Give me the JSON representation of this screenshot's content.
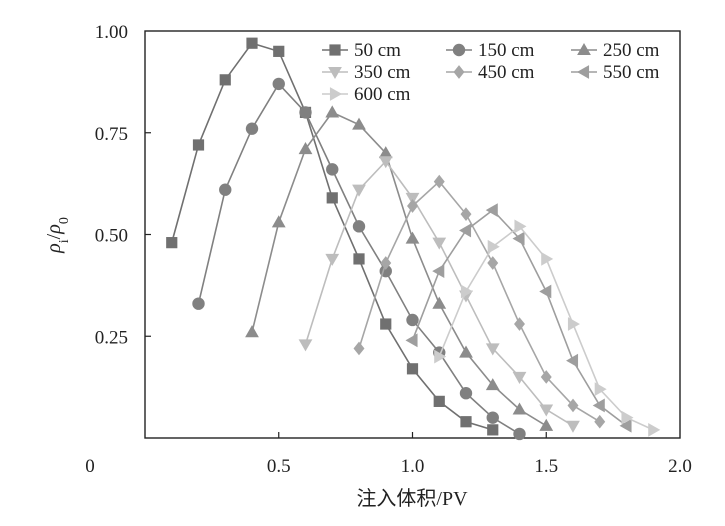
{
  "chart_data": {
    "type": "line",
    "title": "",
    "xlabel": "注入体积/PV",
    "ylabel_main": "ρ",
    "ylabel_sub1": "i",
    "ylabel_slash": "/",
    "ylabel_sub2": "0",
    "xlim": [
      0,
      2.0
    ],
    "ylim": [
      0,
      1.0
    ],
    "x_ticks": [
      {
        "value": 0,
        "label": "0"
      },
      {
        "value": 0.5,
        "label": "0.5"
      },
      {
        "value": 1.0,
        "label": "1.0"
      },
      {
        "value": 1.5,
        "label": "1.5"
      },
      {
        "value": 2.0,
        "label": "2.0"
      }
    ],
    "y_ticks": [
      {
        "value": 0.25,
        "label": "0.25"
      },
      {
        "value": 0.5,
        "label": "0.50"
      },
      {
        "value": 0.75,
        "label": "0.75"
      },
      {
        "value": 1.0,
        "label": "1.00"
      }
    ],
    "legend_position": "top-right",
    "series": [
      {
        "name": "50 cm",
        "marker": "square",
        "color": "#707070",
        "x": [
          0.1,
          0.2,
          0.3,
          0.4,
          0.5,
          0.6,
          0.7,
          0.8,
          0.9,
          1.0,
          1.1,
          1.2,
          1.3
        ],
        "y": [
          0.48,
          0.72,
          0.88,
          0.97,
          0.95,
          0.8,
          0.59,
          0.44,
          0.28,
          0.17,
          0.09,
          0.04,
          0.02
        ]
      },
      {
        "name": "150 cm",
        "marker": "circle",
        "color": "#808080",
        "x": [
          0.2,
          0.3,
          0.4,
          0.5,
          0.6,
          0.7,
          0.8,
          0.9,
          1.0,
          1.1,
          1.2,
          1.3,
          1.4
        ],
        "y": [
          0.33,
          0.61,
          0.76,
          0.87,
          0.8,
          0.66,
          0.52,
          0.41,
          0.29,
          0.21,
          0.11,
          0.05,
          0.01
        ]
      },
      {
        "name": "250 cm",
        "marker": "triangle-up",
        "color": "#8c8c8c",
        "x": [
          0.4,
          0.5,
          0.6,
          0.7,
          0.8,
          0.9,
          1.0,
          1.1,
          1.2,
          1.3,
          1.4,
          1.5
        ],
        "y": [
          0.26,
          0.53,
          0.71,
          0.8,
          0.77,
          0.7,
          0.49,
          0.33,
          0.21,
          0.13,
          0.07,
          0.03
        ]
      },
      {
        "name": "350 cm",
        "marker": "triangle-down",
        "color": "#bdbdbd",
        "x": [
          0.6,
          0.7,
          0.8,
          0.9,
          1.0,
          1.1,
          1.2,
          1.3,
          1.4,
          1.5,
          1.6
        ],
        "y": [
          0.23,
          0.44,
          0.61,
          0.68,
          0.59,
          0.48,
          0.35,
          0.22,
          0.15,
          0.07,
          0.03
        ]
      },
      {
        "name": "450 cm",
        "marker": "diamond",
        "color": "#a6a6a6",
        "x": [
          0.8,
          0.9,
          1.0,
          1.1,
          1.2,
          1.3,
          1.4,
          1.5,
          1.6,
          1.7
        ],
        "y": [
          0.22,
          0.43,
          0.57,
          0.63,
          0.55,
          0.43,
          0.28,
          0.15,
          0.08,
          0.04
        ]
      },
      {
        "name": "550 cm",
        "marker": "triangle-left",
        "color": "#9e9e9e",
        "x": [
          1.0,
          1.1,
          1.2,
          1.3,
          1.4,
          1.5,
          1.6,
          1.7,
          1.8
        ],
        "y": [
          0.24,
          0.41,
          0.51,
          0.56,
          0.49,
          0.36,
          0.19,
          0.08,
          0.03
        ]
      },
      {
        "name": "600 cm",
        "marker": "triangle-right",
        "color": "#cccccc",
        "x": [
          1.1,
          1.2,
          1.3,
          1.4,
          1.5,
          1.6,
          1.7,
          1.8,
          1.9
        ],
        "y": [
          0.2,
          0.36,
          0.47,
          0.52,
          0.44,
          0.28,
          0.12,
          0.05,
          0.02
        ]
      }
    ]
  }
}
